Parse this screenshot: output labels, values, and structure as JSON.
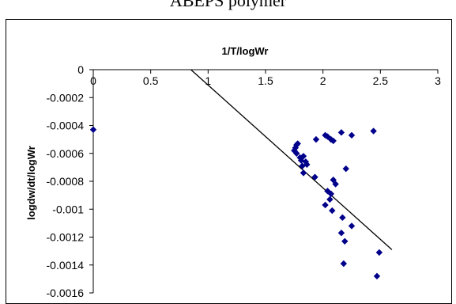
{
  "page": {
    "title": "ABEPS polymer"
  },
  "chart_data": {
    "type": "scatter",
    "title": "1/T/logWr",
    "xlabel": "",
    "ylabel": "logdw/dt/logWr",
    "xlim": [
      0,
      3
    ],
    "ylim": [
      -0.0016,
      0
    ],
    "x_ticks": [
      "0",
      "0.5",
      "1",
      "1.5",
      "2",
      "2.5",
      "3"
    ],
    "y_ticks": [
      "0",
      "-0.0002",
      "-0.0004",
      "-0.0006",
      "-0.0008",
      "-0.001",
      "-0.0012",
      "-0.0014",
      "-0.0016"
    ],
    "grid": false,
    "marker_color": "#00008B",
    "trendline_color": "#000000",
    "series": [
      {
        "points": [
          [
            0.0,
            -0.00043
          ],
          [
            1.75,
            -0.00058
          ],
          [
            1.76,
            -0.00056
          ],
          [
            1.77,
            -0.00054
          ],
          [
            1.78,
            -0.00053
          ],
          [
            1.77,
            -0.0006
          ],
          [
            1.8,
            -0.00063
          ],
          [
            1.81,
            -0.00065
          ],
          [
            1.83,
            -0.00062
          ],
          [
            1.85,
            -0.00066
          ],
          [
            1.82,
            -0.00069
          ],
          [
            1.86,
            -0.00068
          ],
          [
            1.83,
            -0.00074
          ],
          [
            1.93,
            -0.00077
          ],
          [
            1.94,
            -0.0005
          ],
          [
            2.02,
            -0.00047
          ],
          [
            2.04,
            -0.00048
          ],
          [
            2.07,
            -0.0005
          ],
          [
            2.09,
            -0.00051
          ],
          [
            2.16,
            -0.00045
          ],
          [
            2.25,
            -0.00047
          ],
          [
            2.44,
            -0.00044
          ],
          [
            2.2,
            -0.00071
          ],
          [
            2.09,
            -0.00079
          ],
          [
            2.11,
            -0.00082
          ],
          [
            2.04,
            -0.00087
          ],
          [
            2.07,
            -0.00089
          ],
          [
            2.06,
            -0.00093
          ],
          [
            2.02,
            -0.00097
          ],
          [
            2.08,
            -0.00101
          ],
          [
            2.17,
            -0.00106
          ],
          [
            2.25,
            -0.00112
          ],
          [
            2.16,
            -0.00117
          ],
          [
            2.19,
            -0.00123
          ],
          [
            2.49,
            -0.00131
          ],
          [
            2.18,
            -0.00139
          ],
          [
            2.47,
            -0.00148
          ]
        ]
      }
    ],
    "trendline": {
      "x": [
        0.85,
        2.6
      ],
      "y": [
        0.0,
        -0.00129
      ]
    }
  }
}
